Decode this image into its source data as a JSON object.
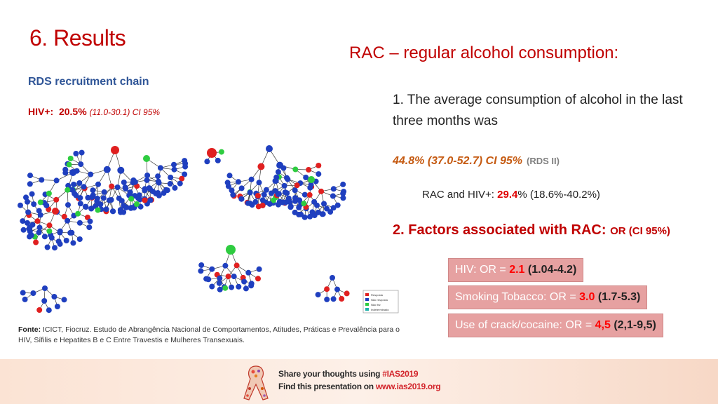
{
  "slide": {
    "title": "6. Results",
    "rac_heading": "RAC – regular alcohol consumption:",
    "rds_label": "RDS recruitment chain",
    "hiv": {
      "label": "HIV+:",
      "pct": "20.5%",
      "ci": "(11.0-30.1) CI 95%"
    },
    "avg_text": "1. The average consumption of alcohol in the last three months was",
    "avg_value": "44.8% (37.0-52.7) CI 95%",
    "avg_rds": "(RDS II)",
    "rac_hiv": {
      "label": "RAC and HIV+: ",
      "value": "29.4",
      "rest": "% (18.6%-40.2%)"
    },
    "factors": {
      "heading": "2. Factors associated with RAC: ",
      "or": "OR (CI 95%)"
    },
    "factor_boxes": [
      {
        "label": "HIV: OR = ",
        "value": "2.1",
        "ci": " (1.04-4.2)"
      },
      {
        "label": "Smoking Tobacco: OR = ",
        "value": "3.0",
        "ci": " (1.7-5.3)"
      },
      {
        "label": "Use of crack/cocaine: OR = ",
        "value": "4,5",
        "ci": " (2,1-9,5)"
      }
    ],
    "legend": [
      {
        "label": "Resposta",
        "color": "#e02020"
      },
      {
        "label": "Não resposta",
        "color": "#1f3fbf"
      },
      {
        "label": "Não fez",
        "color": "#2ecc40"
      },
      {
        "label": "Indeterminado",
        "color": "#20b2aa"
      }
    ],
    "source_bold": "Fonte:",
    "source_text": " ICICT, Fiocruz. Estudo de Abrangência Nacional de Comportamentos, Atitudes, Práticas e Prevalência para o HIV, Sífilis e Hepatites B e C Entre Travestis e Mulheres Transexuais.",
    "footer": {
      "line1_prefix": "Share your thoughts using ",
      "line1_tag": "#IAS2019",
      "line2_prefix": "Find this presentation on ",
      "line2_url": "www.ias2019.org"
    }
  },
  "colors": {
    "accent": "#c00000",
    "blue_node": "#1f3fbf",
    "red_node": "#e02020",
    "green_node": "#2ecc40"
  }
}
